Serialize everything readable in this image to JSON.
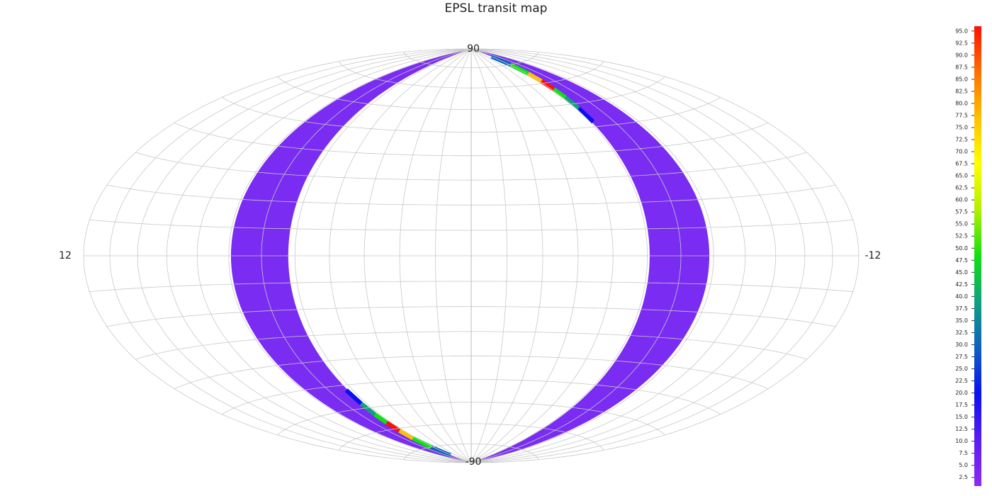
{
  "chart_data": {
    "type": "skymap",
    "title": "EPSL transit map",
    "lat_labels": [
      90,
      -90
    ],
    "lon_labels": [
      12,
      -12
    ],
    "band_color": "#7a2cf2",
    "colormap": [
      "#8f2bf0",
      "#5a1cf5",
      "#0a10f0",
      "#1060c0",
      "#10a080",
      "#10e010",
      "#b0f000",
      "#ffff00",
      "#ffc000",
      "#ff7000",
      "#ff1000"
    ],
    "clim": [
      0.7,
      96
    ],
    "cticks": [
      {
        "value": 2.5,
        "label": "2.5"
      },
      {
        "value": 5,
        "label": "5.0"
      },
      {
        "value": 7.5,
        "label": "7.5"
      },
      {
        "value": 10,
        "label": "10.0"
      },
      {
        "value": 12.5,
        "label": "12.5"
      },
      {
        "value": 15,
        "label": "15.0"
      },
      {
        "value": 17.5,
        "label": "17.5"
      },
      {
        "value": 20,
        "label": "20.0"
      },
      {
        "value": 22.5,
        "label": "22.5"
      },
      {
        "value": 25,
        "label": "25.0"
      },
      {
        "value": 27.5,
        "label": "27.5"
      },
      {
        "value": 30,
        "label": "30.0"
      },
      {
        "value": 32.5,
        "label": "32.5"
      },
      {
        "value": 35,
        "label": "35.0"
      },
      {
        "value": 37.5,
        "label": "37.5"
      },
      {
        "value": 40,
        "label": "40.0"
      },
      {
        "value": 42.5,
        "label": "42.5"
      },
      {
        "value": 45,
        "label": "45.0"
      },
      {
        "value": 47.5,
        "label": "47.5"
      },
      {
        "value": 50,
        "label": "50.0"
      },
      {
        "value": 52.5,
        "label": "52.5"
      },
      {
        "value": 55,
        "label": "55.0"
      },
      {
        "value": 57.5,
        "label": "57.5"
      },
      {
        "value": 60,
        "label": "60.0"
      },
      {
        "value": 62.5,
        "label": "62.5"
      },
      {
        "value": 65,
        "label": "65.0"
      },
      {
        "value": 67.5,
        "label": "67.5"
      },
      {
        "value": 70,
        "label": "70.0"
      },
      {
        "value": 72.5,
        "label": "72.5"
      },
      {
        "value": 75,
        "label": "75.0"
      },
      {
        "value": 77.5,
        "label": "77.5"
      },
      {
        "value": 80,
        "label": "80.0"
      },
      {
        "value": 82.5,
        "label": "82.5"
      },
      {
        "value": 85,
        "label": "85.0"
      },
      {
        "value": 87.5,
        "label": "87.5"
      },
      {
        "value": 90,
        "label": "90.0"
      },
      {
        "value": 92.5,
        "label": "92.5"
      },
      {
        "value": 95,
        "label": "95.0"
      }
    ]
  }
}
